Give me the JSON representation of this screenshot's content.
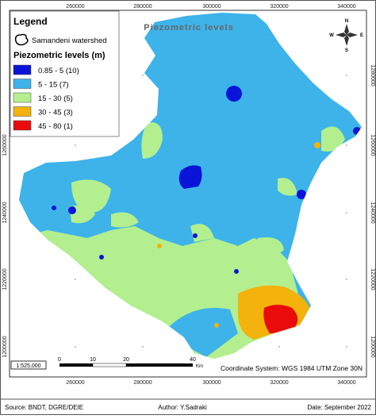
{
  "map": {
    "title": "Piezometric levels",
    "x_coords": [
      "260000",
      "280000",
      "300000",
      "320000",
      "340000"
    ],
    "y_coords": [
      "1280000",
      "1260000",
      "1240000",
      "1220000",
      "1200000"
    ],
    "compass": {
      "n": "N",
      "s": "S",
      "e": "E",
      "w": "W"
    }
  },
  "legend": {
    "title": "Legend",
    "watershed": "Samandeni watershed",
    "subtitle": "Piezometric levels (m)",
    "classes": [
      {
        "label": "0.85 - 5 (10)",
        "color": "#0a14d8"
      },
      {
        "label": "5 - 15 (7)",
        "color": "#3db3ea"
      },
      {
        "label": "15 - 30 (5)",
        "color": "#b3ef8e"
      },
      {
        "label": "30 - 45 (3)",
        "color": "#f3b20c"
      },
      {
        "label": "45 - 80 (1)",
        "color": "#ea0b0b"
      }
    ]
  },
  "scale_bar": {
    "ticks": [
      "0",
      "10",
      "20",
      "40"
    ],
    "unit": "Km",
    "ratio": "1:525,000"
  },
  "coordinate_system": "Coordinate System: WGS 1984 UTM Zone 30N",
  "footer": {
    "source": "Source: BNDT, DGRE/DEIE",
    "author": "Author: Y.Sadraki",
    "date": "Date: September 2022"
  }
}
